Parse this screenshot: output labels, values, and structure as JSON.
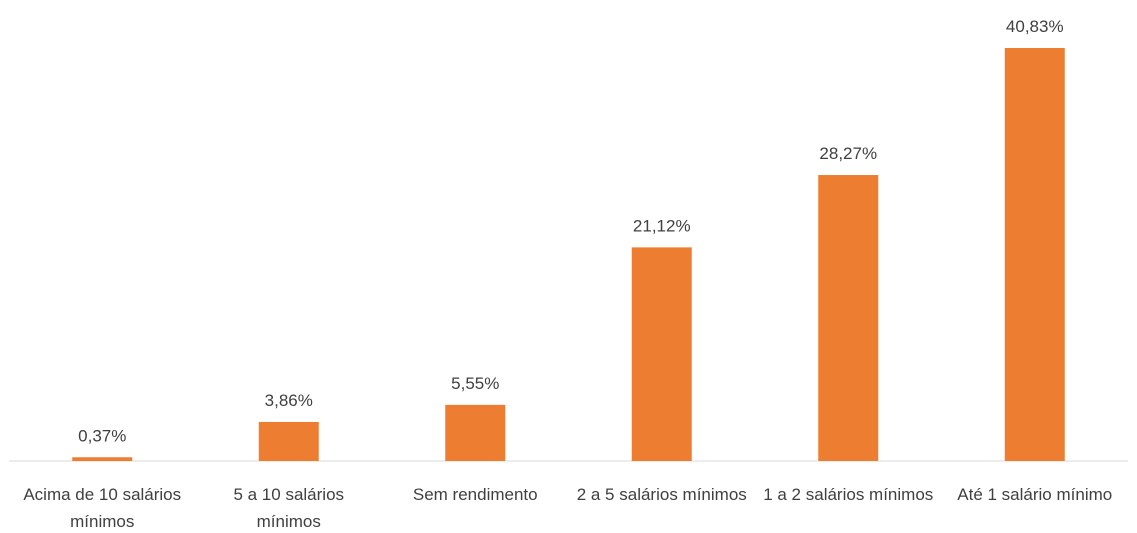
{
  "chart_data": {
    "type": "bar",
    "categories": [
      "Acima de 10 salários mínimos",
      "5 a 10 salários mínimos",
      "Sem rendimento",
      "2 a 5 salários mínimos",
      "1 a 2 salários mínimos",
      "Até 1 salário mínimo"
    ],
    "values": [
      0.37,
      3.86,
      5.55,
      21.12,
      28.27,
      40.83
    ],
    "value_labels": [
      "0,37%",
      "3,86%",
      "5,55%",
      "21,12%",
      "28,27%",
      "40,83%"
    ],
    "color": "#ed7d31",
    "grid": false
  }
}
